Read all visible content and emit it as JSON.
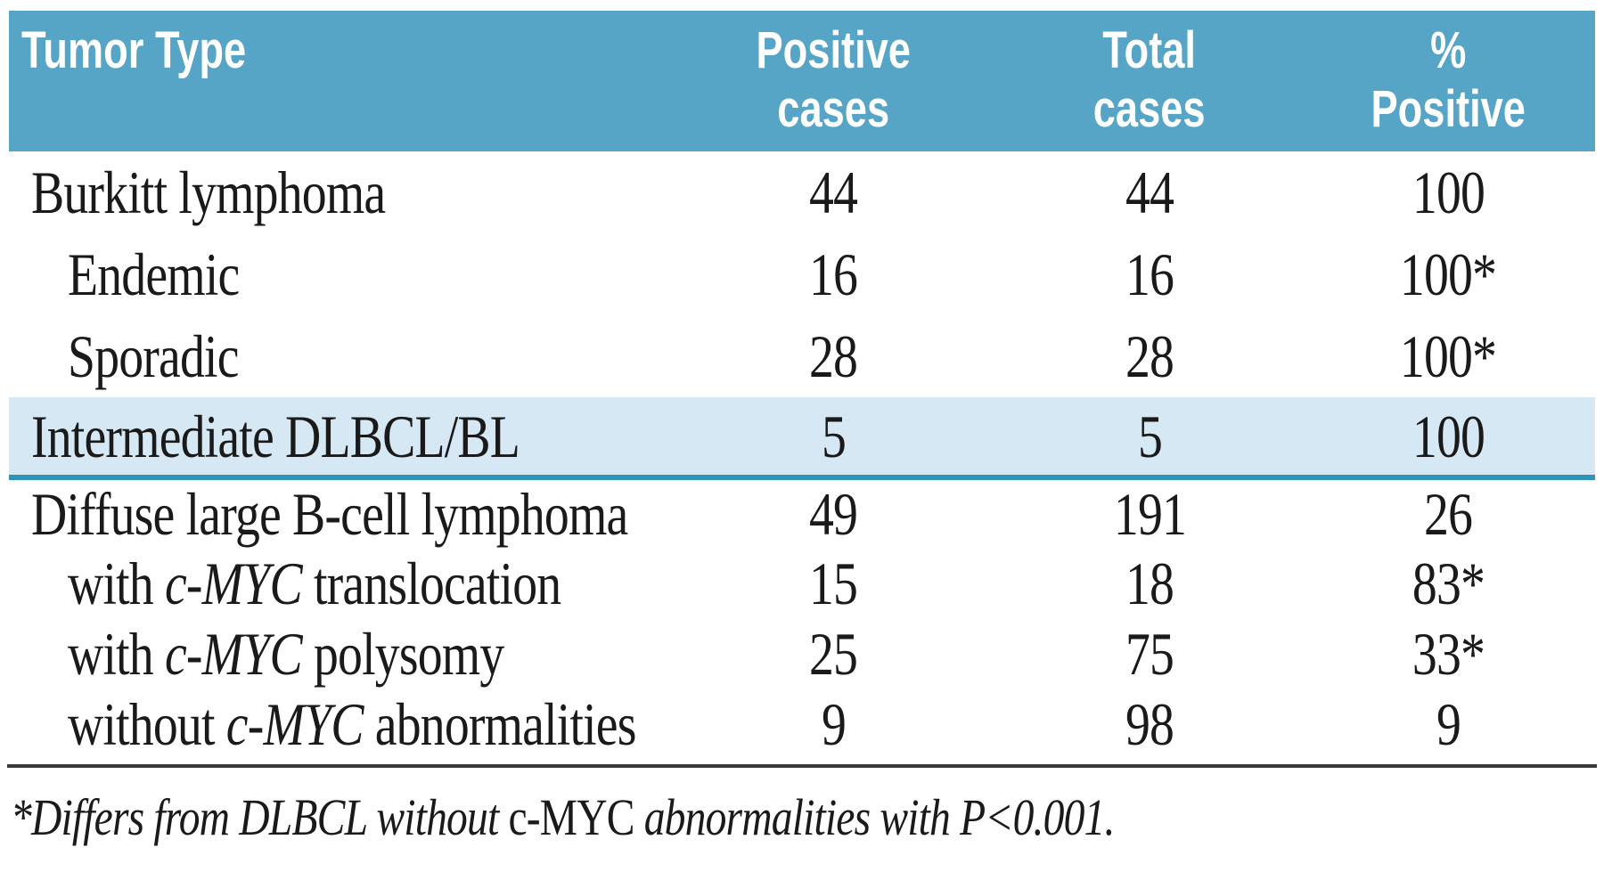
{
  "colors": {
    "header_bg": "#56a4c6",
    "header_text": "#ffffff",
    "highlight_bg": "#d5e8f3",
    "highlight_border": "#2e93b4",
    "rule": "#3a3a3a",
    "body_text": "#1a1a1a"
  },
  "table": {
    "header": {
      "tumor_type": "Tumor Type",
      "positive_line1": "Positive",
      "positive_line2": "cases",
      "total_line1": "Total",
      "total_line2": "cases",
      "percent_line1": "%",
      "percent_line2": "Positive"
    },
    "rows": [
      {
        "prefix": "Burkitt lymphoma",
        "gene": "",
        "suffix": "",
        "positive": "44",
        "total": "44",
        "percent": "100"
      },
      {
        "prefix": "Endemic",
        "gene": "",
        "suffix": "",
        "positive": "16",
        "total": "16",
        "percent": "100*"
      },
      {
        "prefix": "Sporadic",
        "gene": "",
        "suffix": "",
        "positive": "28",
        "total": "28",
        "percent": "100*"
      },
      {
        "prefix": "Intermediate DLBCL/BL",
        "gene": "",
        "suffix": "",
        "positive": "5",
        "total": "5",
        "percent": "100"
      },
      {
        "prefix": "Diffuse large B-cell lymphoma",
        "gene": "",
        "suffix": "",
        "positive": "49",
        "total": "191",
        "percent": "26"
      },
      {
        "prefix": "with ",
        "gene": "c-MYC",
        "suffix": " translocation",
        "positive": "15",
        "total": "18",
        "percent": "83*"
      },
      {
        "prefix": "with ",
        "gene": "c-MYC",
        "suffix": " polysomy",
        "positive": "25",
        "total": "75",
        "percent": "33*"
      },
      {
        "prefix": "without ",
        "gene": "c-MYC",
        "suffix": " abnormalities",
        "positive": "9",
        "total": "98",
        "percent": "9"
      }
    ]
  },
  "footnote": {
    "prefix": "*Differs from DLBCL without ",
    "gene": "c-MYC",
    "suffix": " abnormalities with P<0.001."
  }
}
